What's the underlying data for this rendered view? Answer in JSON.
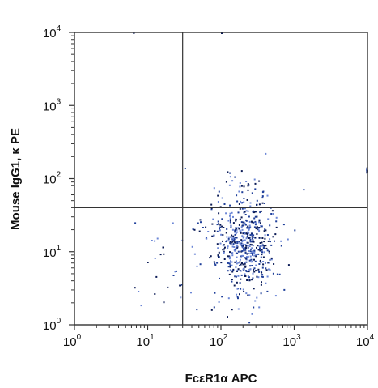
{
  "chart_data": {
    "type": "scatter",
    "xlabel": "FcεR1α APC",
    "ylabel": "Mouse IgG1, κ PE",
    "x_scale": "log",
    "y_scale": "log",
    "xlim": [
      1,
      10000
    ],
    "ylim": [
      1,
      10000
    ],
    "x_ticks": [
      {
        "base": "10",
        "exp": "0"
      },
      {
        "base": "10",
        "exp": "1"
      },
      {
        "base": "10",
        "exp": "2"
      },
      {
        "base": "10",
        "exp": "3"
      },
      {
        "base": "10",
        "exp": "4"
      }
    ],
    "y_ticks": [
      {
        "base": "10",
        "exp": "0"
      },
      {
        "base": "10",
        "exp": "1"
      },
      {
        "base": "10",
        "exp": "2"
      },
      {
        "base": "10",
        "exp": "3"
      },
      {
        "base": "10",
        "exp": "4"
      }
    ],
    "gates": {
      "x": 30,
      "y": 40
    },
    "grid": false,
    "colors": {
      "points": "#1f3f9a",
      "points_dark": "#0a1a55",
      "points_light": "#6b86d6",
      "axis": "#333333",
      "gate": "#333333"
    }
  }
}
